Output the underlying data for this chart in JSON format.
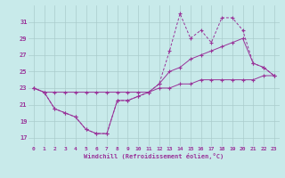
{
  "xlabel": "Windchill (Refroidissement éolien,°C)",
  "background_color": "#c8eaea",
  "grid_color": "#aacccc",
  "line_color": "#993399",
  "x_ticks": [
    0,
    1,
    2,
    3,
    4,
    5,
    6,
    7,
    8,
    9,
    10,
    11,
    12,
    13,
    14,
    15,
    16,
    17,
    18,
    19,
    20,
    21,
    22,
    23
  ],
  "y_ticks": [
    17,
    19,
    21,
    23,
    25,
    27,
    29,
    31
  ],
  "ylim": [
    16.0,
    33.0
  ],
  "xlim": [
    -0.5,
    23.5
  ],
  "series1_x": [
    0,
    1,
    2,
    3,
    4,
    5,
    6,
    7,
    8,
    9,
    10,
    11,
    12,
    13,
    14,
    15,
    16,
    17,
    18,
    19,
    20,
    21,
    22,
    23
  ],
  "series1_y": [
    23,
    22.5,
    20.5,
    20.0,
    19.5,
    18.0,
    17.5,
    17.5,
    21.5,
    21.5,
    22.0,
    22.5,
    23.5,
    27.5,
    32.0,
    29.0,
    30.0,
    28.5,
    31.5,
    31.5,
    30.0,
    26.0,
    25.5,
    24.5
  ],
  "series2_x": [
    0,
    1,
    2,
    3,
    4,
    5,
    6,
    7,
    8,
    9,
    10,
    11,
    12,
    13,
    14,
    15,
    16,
    17,
    18,
    19,
    20,
    21,
    22,
    23
  ],
  "series2_y": [
    23,
    22.5,
    20.5,
    20.0,
    19.5,
    18.0,
    17.5,
    17.5,
    21.5,
    21.5,
    22.0,
    22.5,
    23.5,
    25.0,
    25.5,
    26.5,
    27.0,
    27.5,
    28.0,
    28.5,
    29.0,
    26.0,
    25.5,
    24.5
  ],
  "series3_x": [
    0,
    1,
    2,
    3,
    4,
    5,
    6,
    7,
    8,
    9,
    10,
    11,
    12,
    13,
    14,
    15,
    16,
    17,
    18,
    19,
    20,
    21,
    22,
    23
  ],
  "series3_y": [
    23,
    22.5,
    22.5,
    22.5,
    22.5,
    22.5,
    22.5,
    22.5,
    22.5,
    22.5,
    22.5,
    22.5,
    23.0,
    23.0,
    23.5,
    23.5,
    24.0,
    24.0,
    24.0,
    24.0,
    24.0,
    24.0,
    24.5,
    24.5
  ]
}
